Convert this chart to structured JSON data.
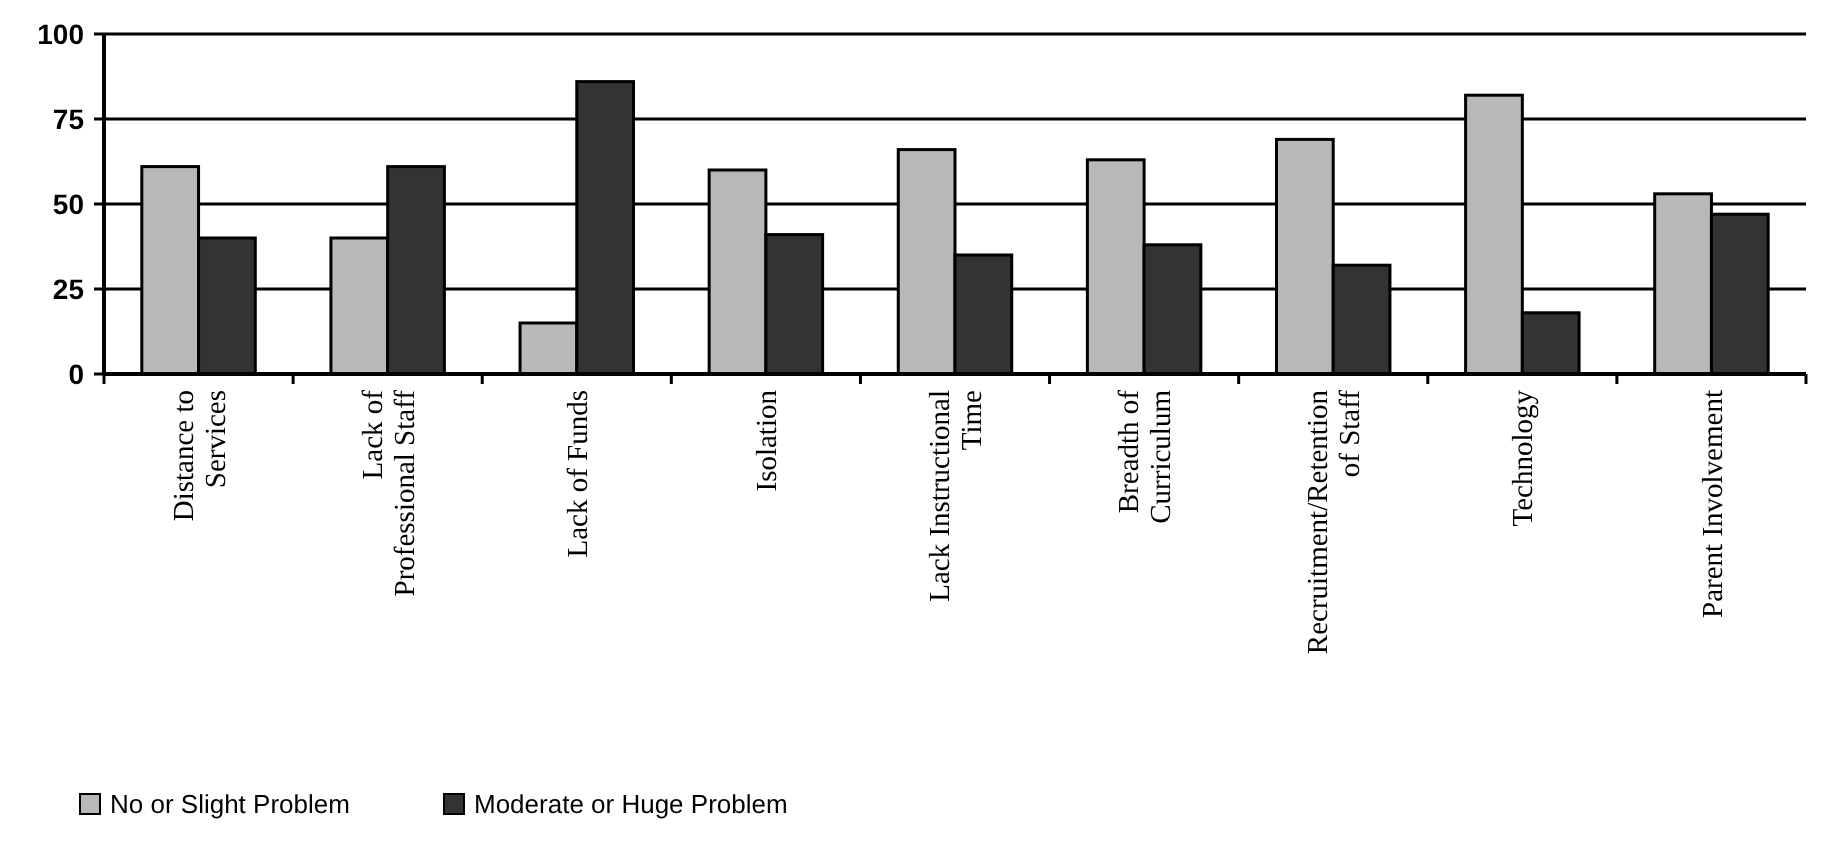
{
  "chart_data": {
    "type": "bar",
    "categories": [
      "Distance to Services",
      "Lack of Professional Staff",
      "Lack of Funds",
      "Isolation",
      "Lack Instructional Time",
      "Breadth of Curriculum",
      "Recruitment/Retention of Staff",
      "Technology",
      "Parent Involvement"
    ],
    "series": [
      {
        "name": "No or Slight Problem",
        "color": "#b8b8b8",
        "values": [
          61,
          40,
          15,
          60,
          66,
          63,
          69,
          82,
          53
        ]
      },
      {
        "name": "Moderate or Huge Problem",
        "color": "#333333",
        "values": [
          40,
          61,
          86,
          41,
          35,
          38,
          32,
          18,
          47
        ]
      }
    ],
    "ylim": [
      0,
      100
    ],
    "yticks": [
      0,
      25,
      50,
      75,
      100
    ],
    "grid": "y",
    "legend": "bottom left"
  }
}
